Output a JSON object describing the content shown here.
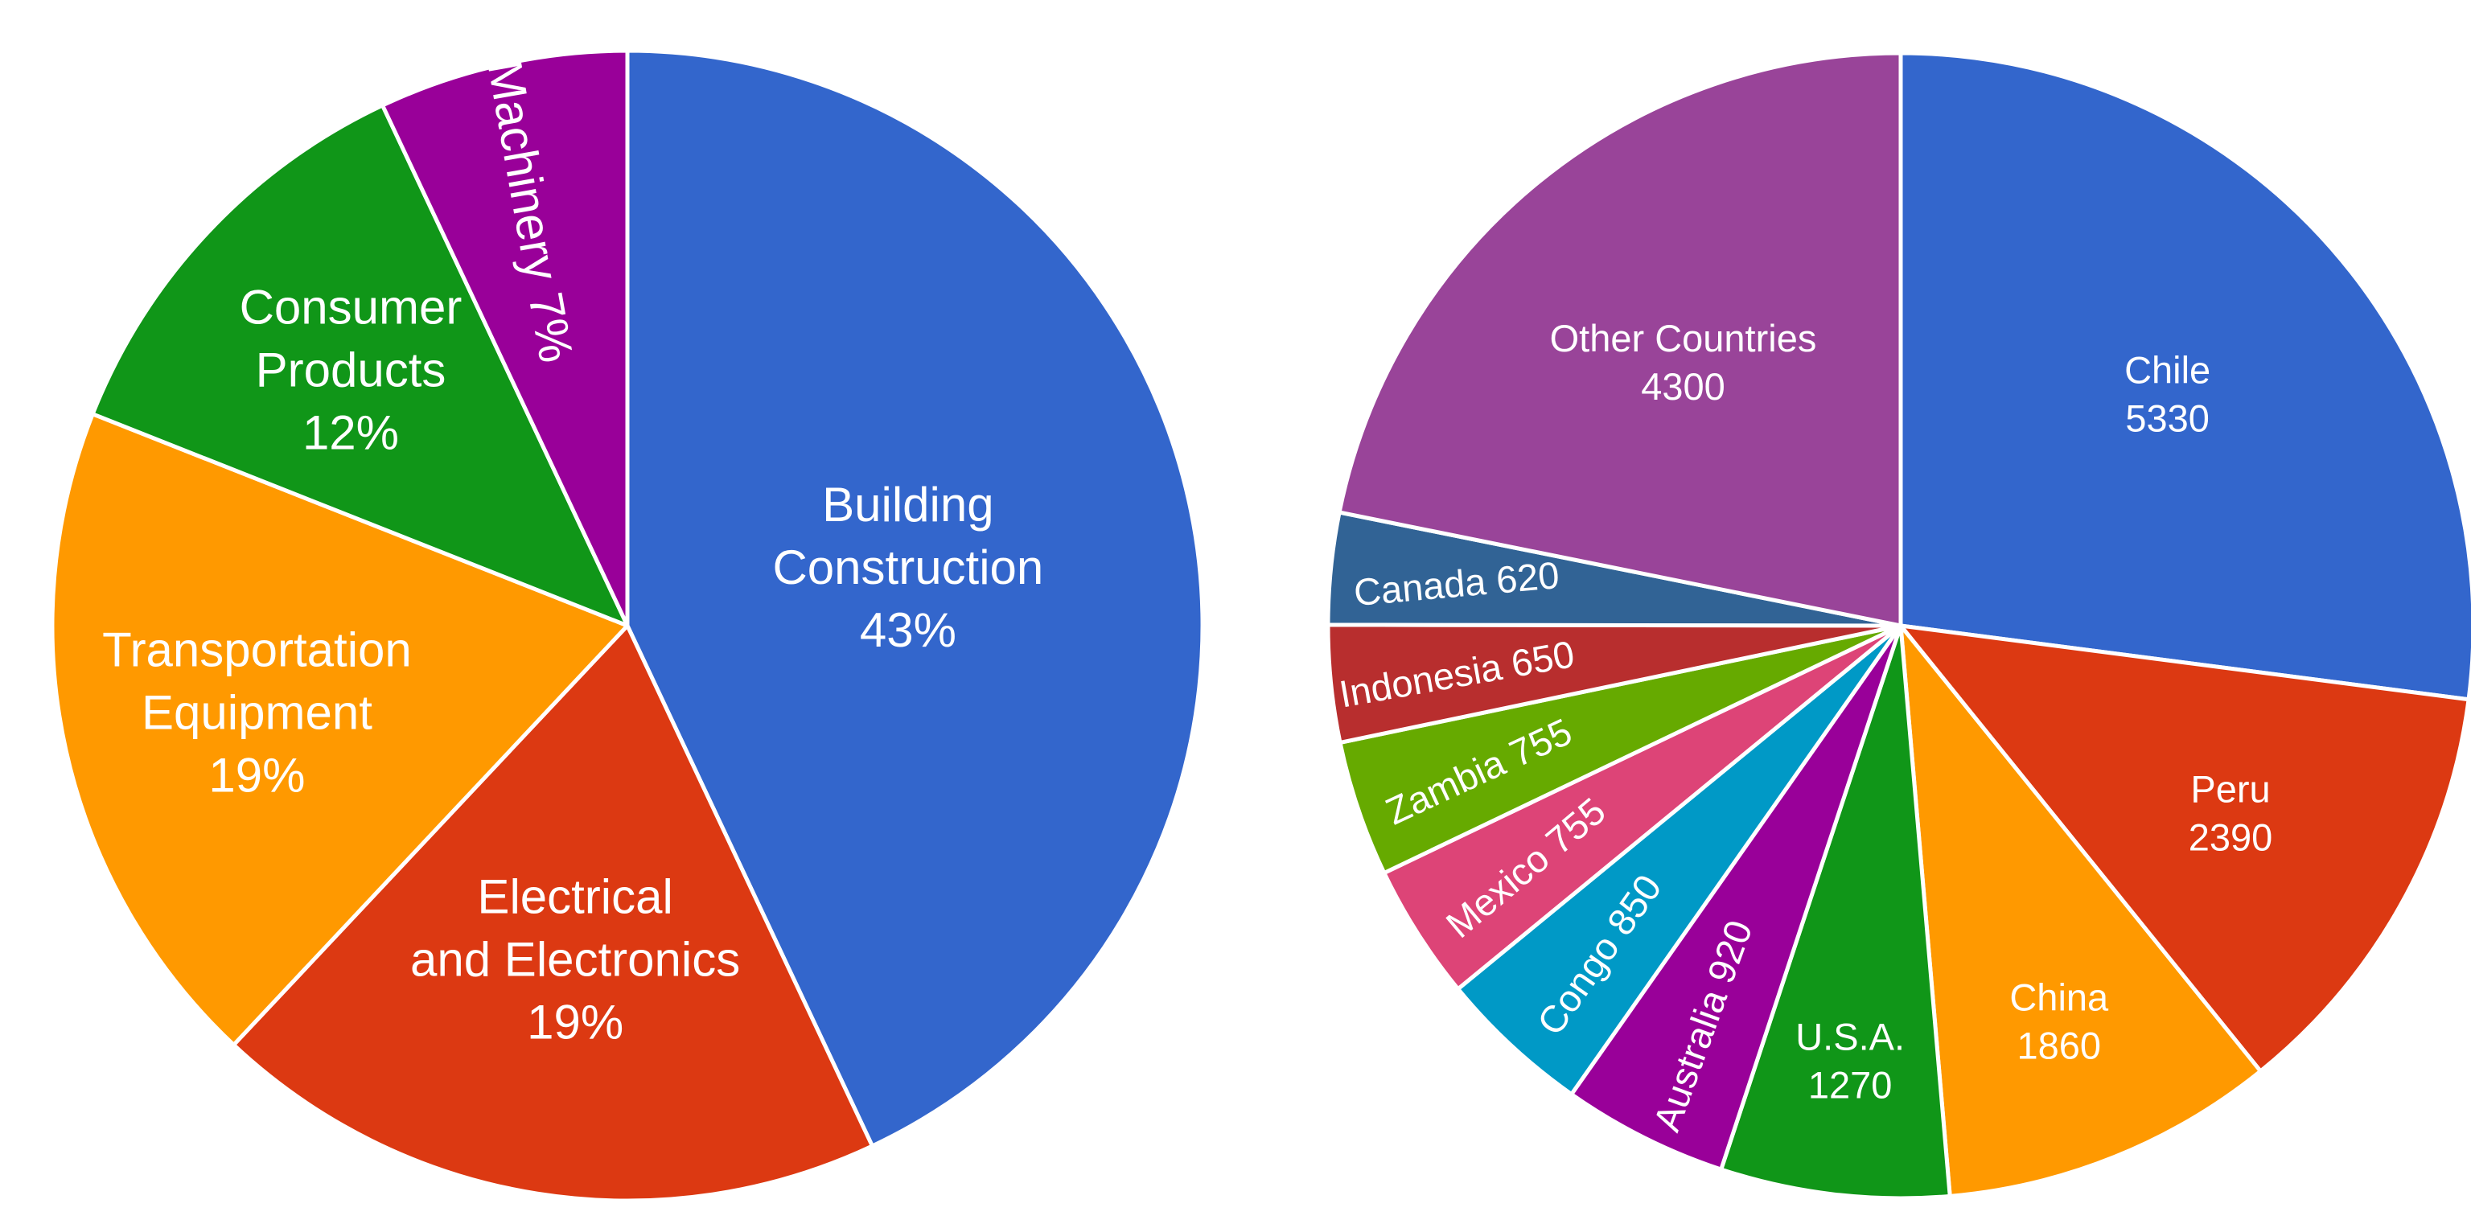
{
  "chart_data": [
    {
      "type": "pie",
      "slices": [
        {
          "label": "Building Construction",
          "value": 43,
          "color": "#3366cc",
          "text_lines": [
            "Building",
            "Construction",
            "43%"
          ]
        },
        {
          "label": "Electrical and Electronics",
          "value": 19,
          "color": "#dc3912",
          "text_lines": [
            "Electrical",
            "and Electronics",
            "19%"
          ]
        },
        {
          "label": "Transportation Equipment",
          "value": 19,
          "color": "#ff9900",
          "text_lines": [
            "Transportation",
            "Equipment",
            "19%"
          ]
        },
        {
          "label": "Consumer Products",
          "value": 12,
          "color": "#109618",
          "text_lines": [
            "Consumer",
            "Products",
            "12%"
          ]
        },
        {
          "label": "Machinery",
          "value": 7,
          "color": "#990099",
          "text_lines": [
            "Machinery 7%"
          ]
        }
      ]
    },
    {
      "type": "pie",
      "slices": [
        {
          "label": "Chile",
          "value": 5330,
          "color": "#3366cc",
          "text_lines": [
            "Chile",
            "5330"
          ]
        },
        {
          "label": "Peru",
          "value": 2390,
          "color": "#dc3912",
          "text_lines": [
            "Peru",
            "2390"
          ]
        },
        {
          "label": "China",
          "value": 1860,
          "color": "#ff9900",
          "text_lines": [
            "China",
            "1860"
          ]
        },
        {
          "label": "U.S.A.",
          "value": 1270,
          "color": "#109618",
          "text_lines": [
            "U.S.A.",
            "1270"
          ]
        },
        {
          "label": "Australia",
          "value": 920,
          "color": "#990099",
          "text_lines": [
            "Australia 920"
          ]
        },
        {
          "label": "Congo",
          "value": 850,
          "color": "#0099c6",
          "text_lines": [
            "Congo 850"
          ]
        },
        {
          "label": "Mexico",
          "value": 755,
          "color": "#dd4477",
          "text_lines": [
            "Mexico 755"
          ]
        },
        {
          "label": "Zambia",
          "value": 755,
          "color": "#66aa00",
          "text_lines": [
            "Zambia 755"
          ]
        },
        {
          "label": "Indonesia",
          "value": 650,
          "color": "#b82e2e",
          "text_lines": [
            "Indonesia 650"
          ]
        },
        {
          "label": "Canada",
          "value": 620,
          "color": "#316395",
          "text_lines": [
            "Canada 620"
          ]
        },
        {
          "label": "Other Countries",
          "value": 4300,
          "color": "#994499",
          "text_lines": [
            "Other Countries",
            "4300"
          ]
        }
      ]
    }
  ]
}
